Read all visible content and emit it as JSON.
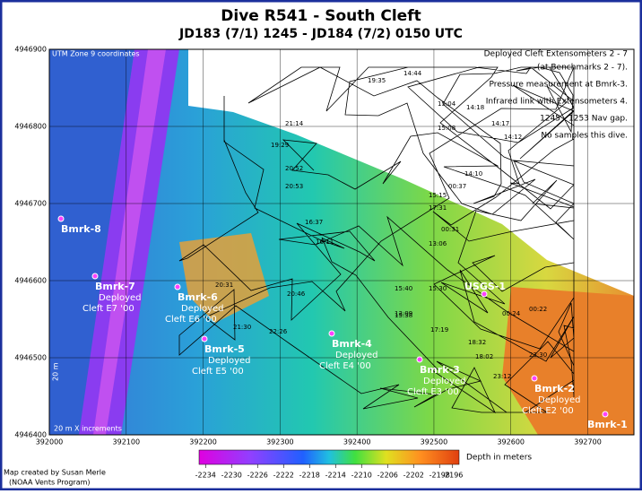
{
  "map": {
    "title": "Dive R541 - South Cleft",
    "subtitle": "JD183 (7/1) 1245 - JD184 (7/2) 0150 UTC",
    "zone_note": "UTM Zone 9 coordinates",
    "scale_note": "20 m X increments",
    "y_note": "20 m",
    "xlim": [
      392000,
      392760
    ],
    "ylim": [
      4946400,
      4946900
    ],
    "xticks": [
      392000,
      392100,
      392200,
      392300,
      392400,
      392500,
      392600,
      392700
    ],
    "yticks": [
      4946400,
      4946500,
      4946600,
      4946700,
      4946800,
      4946900
    ],
    "notes": [
      "Deployed Cleft Extensometers 2 - 7",
      "(at Benchmarks 2 - 7).",
      "Pressure measurement at Bmrk-3.",
      "Infrared link with Extensometers 4.",
      "1245 - 1253 Nav gap.",
      "No samples this dive."
    ],
    "benchmarks": [
      {
        "name": "Bmrk-8"
      },
      {
        "name": "Bmrk-7",
        "lines": [
          "Deployed",
          "Cleft E7 '00"
        ]
      },
      {
        "name": "Bmrk-6",
        "lines": [
          "Deployed",
          "Cleft E6 '00"
        ]
      },
      {
        "name": "Bmrk-5",
        "lines": [
          "Deployed",
          "Cleft E5 '00"
        ]
      },
      {
        "name": "Bmrk-4",
        "lines": [
          "Deployed",
          "Cleft E4 '00"
        ]
      },
      {
        "name": "Bmrk-3",
        "lines": [
          "Deployed",
          "Cleft E3 '00"
        ]
      },
      {
        "name": "Bmrk-2",
        "lines": [
          "Deployed",
          "Cleft E2 '00"
        ]
      },
      {
        "name": "Bmrk-1"
      },
      {
        "name": "USGS-1"
      }
    ],
    "times": [
      "19:29",
      "20:52",
      "20:53",
      "21:14",
      "16:37",
      "16:11",
      "15:40",
      "15:30",
      "15:38",
      "15:15",
      "17:31",
      "00:37",
      "00:31",
      "00:24",
      "00:22",
      "13:06",
      "13:09",
      "14:12",
      "14:10",
      "14:17",
      "14:18",
      "15:04",
      "15:08",
      "14:44",
      "19:35",
      "17:19",
      "18:32",
      "18:02",
      "23:30",
      "20:31",
      "21:30",
      "22:26",
      "20:46",
      "23:12"
    ],
    "colorbar": {
      "label": "Depth in meters",
      "ticks": [
        -2234,
        -2230,
        -2226,
        -2222,
        -2218,
        -2214,
        -2210,
        -2206,
        -2202,
        -2198,
        -2196
      ],
      "lim": [
        -2235,
        -2195
      ]
    },
    "credit": [
      "Map created by Susan Merle",
      "(NOAA Vents Program)"
    ]
  }
}
